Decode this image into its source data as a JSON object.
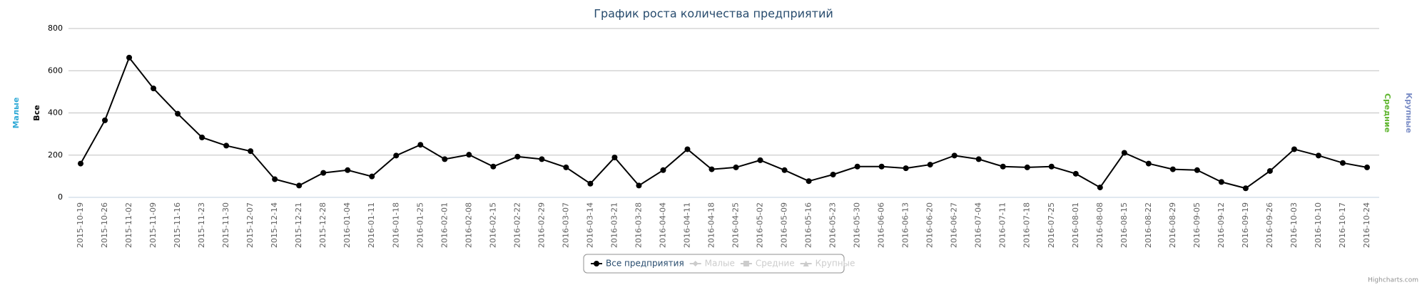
{
  "chart_data": {
    "type": "line",
    "title": "График роста количества предприятий",
    "categories": [
      "2015-10-19",
      "2015-10-26",
      "2015-11-02",
      "2015-11-09",
      "2015-11-16",
      "2015-11-23",
      "2015-11-30",
      "2015-12-07",
      "2015-12-14",
      "2015-12-21",
      "2015-12-28",
      "2016-01-04",
      "2016-01-11",
      "2016-01-18",
      "2016-01-25",
      "2016-02-01",
      "2016-02-08",
      "2016-02-15",
      "2016-02-22",
      "2016-02-29",
      "2016-03-07",
      "2016-03-14",
      "2016-03-21",
      "2016-03-28",
      "2016-04-04",
      "2016-04-11",
      "2016-04-18",
      "2016-04-25",
      "2016-05-02",
      "2016-05-09",
      "2016-05-16",
      "2016-05-23",
      "2016-05-30",
      "2016-06-06",
      "2016-06-13",
      "2016-06-20",
      "2016-06-27",
      "2016-07-04",
      "2016-07-11",
      "2016-07-18",
      "2016-07-25",
      "2016-08-01",
      "2016-08-08",
      "2016-08-15",
      "2016-08-22",
      "2016-08-29",
      "2016-09-05",
      "2016-09-12",
      "2016-09-19",
      "2016-09-26",
      "2016-10-03",
      "2016-10-10",
      "2016-10-17",
      "2016-10-24"
    ],
    "series": [
      {
        "name": "Все предприятия",
        "color": "#000000",
        "values": [
          160,
          365,
          662,
          516,
          396,
          284,
          245,
          219,
          86,
          56,
          116,
          129,
          99,
          198,
          249,
          181,
          202,
          146,
          193,
          181,
          142,
          65,
          189,
          56,
          129,
          228,
          133,
          142,
          176,
          129,
          77,
          108,
          146,
          146,
          138,
          155,
          198,
          181,
          146,
          142,
          146,
          112,
          47,
          211,
          160,
          133,
          129,
          73,
          43,
          125,
          228,
          198,
          163,
          142
        ]
      }
    ],
    "legend_hidden": [
      {
        "name": "Малые",
        "color": "#cccccc",
        "symbol": "diamond"
      },
      {
        "name": "Средние",
        "color": "#cccccc",
        "symbol": "square"
      },
      {
        "name": "Крупные",
        "color": "#cccccc",
        "symbol": "triangle"
      }
    ],
    "axis_titles": [
      {
        "text": "Малые",
        "color": "#2fa9d6",
        "side": "left"
      },
      {
        "text": "Все",
        "color": "#000000",
        "side": "left"
      },
      {
        "text": "Средние",
        "color": "#5fb52f",
        "side": "right"
      },
      {
        "text": "Крупные",
        "color": "#7d8fc7",
        "side": "right"
      }
    ],
    "ylim": [
      0,
      800
    ],
    "yticks": [
      0,
      200,
      400,
      600,
      800
    ],
    "grid": true,
    "credit": "Highcharts.com"
  }
}
